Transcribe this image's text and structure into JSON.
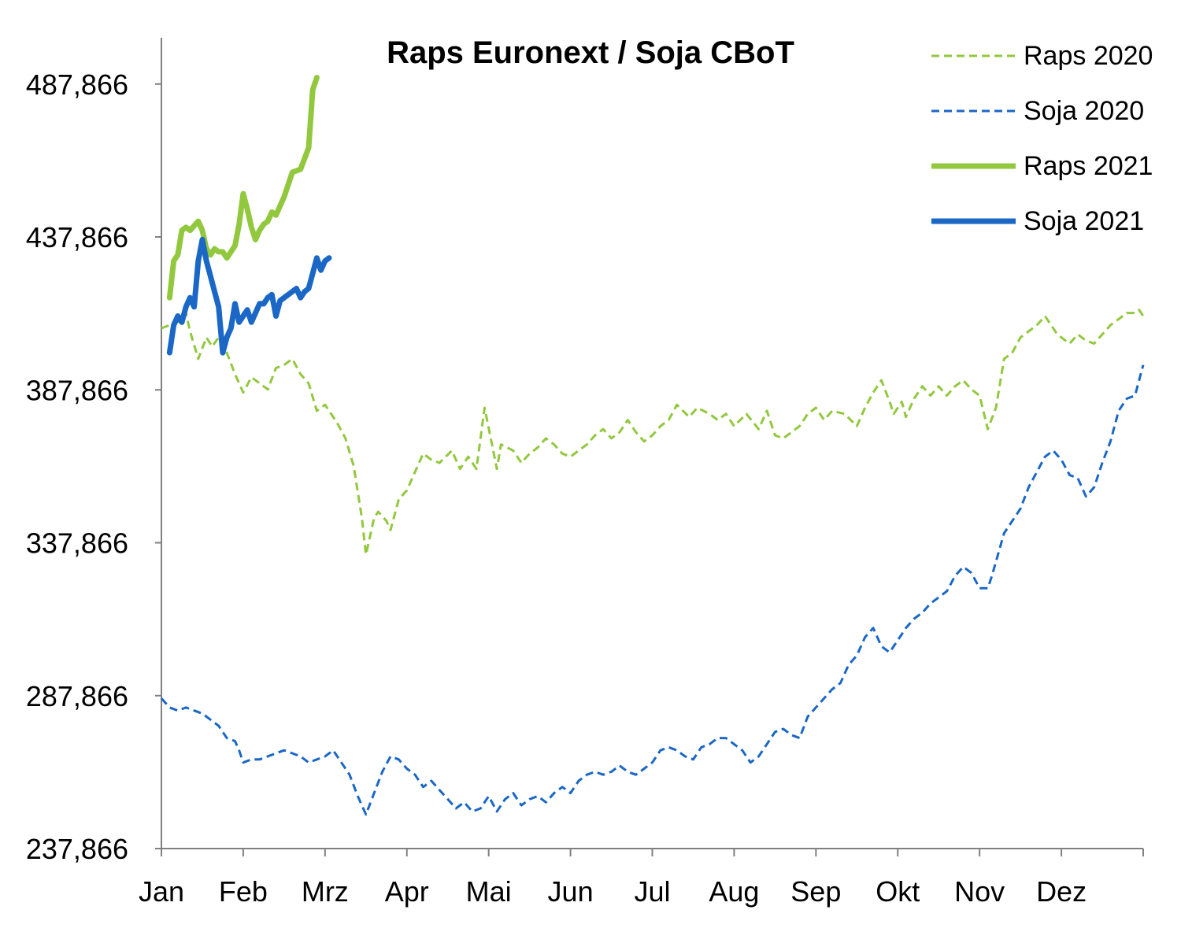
{
  "chart_data": {
    "type": "line",
    "title": "Raps Euronext / Soja CBoT",
    "xlabel": "",
    "ylabel": "",
    "x_categories": [
      "Jan",
      "Feb",
      "Mrz",
      "Apr",
      "Mai",
      "Jun",
      "Jul",
      "Aug",
      "Sep",
      "Okt",
      "Nov",
      "Dez"
    ],
    "x_domain": [
      0,
      12
    ],
    "y_ticks": [
      "237,866",
      "287,866",
      "337,866",
      "387,866",
      "437,866",
      "487,866"
    ],
    "ylim": [
      237.866,
      500
    ],
    "grid": false,
    "legend_position": "top-right",
    "series": [
      {
        "name": "Raps 2020",
        "color": "#92C83E",
        "dash": true,
        "points": [
          [
            0,
            408
          ],
          [
            0.2,
            410
          ],
          [
            0.3,
            413
          ],
          [
            0.35,
            407
          ],
          [
            0.45,
            398
          ],
          [
            0.55,
            405
          ],
          [
            0.62,
            402
          ],
          [
            0.7,
            405
          ],
          [
            0.8,
            400
          ],
          [
            0.9,
            393
          ],
          [
            1.0,
            387
          ],
          [
            1.1,
            392
          ],
          [
            1.25,
            389
          ],
          [
            1.3,
            388
          ],
          [
            1.4,
            395
          ],
          [
            1.5,
            396
          ],
          [
            1.6,
            398
          ],
          [
            1.7,
            393
          ],
          [
            1.8,
            390
          ],
          [
            1.9,
            381
          ],
          [
            2.0,
            383
          ],
          [
            2.15,
            377
          ],
          [
            2.25,
            372
          ],
          [
            2.35,
            363
          ],
          [
            2.45,
            346
          ],
          [
            2.5,
            334
          ],
          [
            2.6,
            346
          ],
          [
            2.65,
            348
          ],
          [
            2.75,
            345
          ],
          [
            2.8,
            342
          ],
          [
            2.9,
            352
          ],
          [
            3.0,
            355
          ],
          [
            3.1,
            361
          ],
          [
            3.2,
            367
          ],
          [
            3.3,
            365
          ],
          [
            3.4,
            364
          ],
          [
            3.55,
            368
          ],
          [
            3.65,
            362
          ],
          [
            3.75,
            366
          ],
          [
            3.85,
            362
          ],
          [
            3.95,
            382
          ],
          [
            4.1,
            362
          ],
          [
            4.15,
            370
          ],
          [
            4.3,
            368
          ],
          [
            4.4,
            364
          ],
          [
            4.5,
            367
          ],
          [
            4.6,
            369
          ],
          [
            4.7,
            372
          ],
          [
            4.8,
            370
          ],
          [
            4.9,
            367
          ],
          [
            5.0,
            366
          ],
          [
            5.1,
            368
          ],
          [
            5.2,
            370
          ],
          [
            5.3,
            373
          ],
          [
            5.4,
            375
          ],
          [
            5.5,
            372
          ],
          [
            5.6,
            374
          ],
          [
            5.7,
            378
          ],
          [
            5.8,
            374
          ],
          [
            5.9,
            371
          ],
          [
            6.0,
            373
          ],
          [
            6.1,
            376
          ],
          [
            6.2,
            378
          ],
          [
            6.3,
            383
          ],
          [
            6.45,
            379
          ],
          [
            6.55,
            382
          ],
          [
            6.7,
            380
          ],
          [
            6.8,
            378
          ],
          [
            6.9,
            380
          ],
          [
            7.0,
            376
          ],
          [
            7.15,
            380
          ],
          [
            7.3,
            375
          ],
          [
            7.4,
            381
          ],
          [
            7.5,
            373
          ],
          [
            7.6,
            372
          ],
          [
            7.7,
            374
          ],
          [
            7.8,
            376
          ],
          [
            7.9,
            380
          ],
          [
            8.0,
            382
          ],
          [
            8.1,
            378
          ],
          [
            8.2,
            381
          ],
          [
            8.35,
            380
          ],
          [
            8.5,
            376
          ],
          [
            8.6,
            382
          ],
          [
            8.7,
            387
          ],
          [
            8.8,
            391
          ],
          [
            8.9,
            384
          ],
          [
            8.95,
            380
          ],
          [
            9.05,
            384
          ],
          [
            9.1,
            379
          ],
          [
            9.2,
            385
          ],
          [
            9.3,
            389
          ],
          [
            9.4,
            386
          ],
          [
            9.5,
            389
          ],
          [
            9.6,
            386
          ],
          [
            9.7,
            389
          ],
          [
            9.8,
            391
          ],
          [
            9.9,
            388
          ],
          [
            10.0,
            386
          ],
          [
            10.1,
            375
          ],
          [
            10.2,
            382
          ],
          [
            10.3,
            398
          ],
          [
            10.4,
            400
          ],
          [
            10.5,
            405
          ],
          [
            10.6,
            407
          ],
          [
            10.7,
            409
          ],
          [
            10.8,
            412
          ],
          [
            10.85,
            410
          ],
          [
            10.95,
            406
          ],
          [
            11.0,
            405
          ],
          [
            11.1,
            403
          ],
          [
            11.2,
            406
          ],
          [
            11.3,
            404
          ],
          [
            11.4,
            403
          ],
          [
            11.5,
            406
          ],
          [
            11.6,
            409
          ],
          [
            11.7,
            411
          ],
          [
            11.8,
            413
          ],
          [
            11.9,
            413
          ],
          [
            11.95,
            414
          ],
          [
            12.0,
            412
          ]
        ]
      },
      {
        "name": "Soja 2020",
        "color": "#1A67C6",
        "dash": true,
        "points": [
          [
            0,
            287
          ],
          [
            0.1,
            284
          ],
          [
            0.2,
            283
          ],
          [
            0.3,
            284
          ],
          [
            0.4,
            283
          ],
          [
            0.5,
            282
          ],
          [
            0.6,
            280
          ],
          [
            0.7,
            278
          ],
          [
            0.8,
            274
          ],
          [
            0.9,
            273
          ],
          [
            0.95,
            270
          ],
          [
            1.0,
            266
          ],
          [
            1.1,
            267
          ],
          [
            1.2,
            267
          ],
          [
            1.3,
            268
          ],
          [
            1.4,
            269
          ],
          [
            1.5,
            270
          ],
          [
            1.6,
            269
          ],
          [
            1.7,
            268
          ],
          [
            1.8,
            266
          ],
          [
            1.9,
            267
          ],
          [
            2.0,
            268
          ],
          [
            2.1,
            270
          ],
          [
            2.2,
            266
          ],
          [
            2.3,
            262
          ],
          [
            2.4,
            255
          ],
          [
            2.5,
            249
          ],
          [
            2.6,
            256
          ],
          [
            2.7,
            263
          ],
          [
            2.8,
            268
          ],
          [
            2.9,
            267
          ],
          [
            3.0,
            264
          ],
          [
            3.1,
            262
          ],
          [
            3.2,
            258
          ],
          [
            3.3,
            260
          ],
          [
            3.4,
            257
          ],
          [
            3.5,
            254
          ],
          [
            3.6,
            251
          ],
          [
            3.7,
            253
          ],
          [
            3.8,
            250
          ],
          [
            3.9,
            251
          ],
          [
            4.0,
            255
          ],
          [
            4.1,
            250
          ],
          [
            4.2,
            254
          ],
          [
            4.3,
            256
          ],
          [
            4.4,
            252
          ],
          [
            4.5,
            254
          ],
          [
            4.6,
            255
          ],
          [
            4.7,
            253
          ],
          [
            4.8,
            256
          ],
          [
            4.9,
            258
          ],
          [
            5.0,
            256
          ],
          [
            5.1,
            260
          ],
          [
            5.2,
            262
          ],
          [
            5.3,
            263
          ],
          [
            5.4,
            262
          ],
          [
            5.5,
            263
          ],
          [
            5.6,
            265
          ],
          [
            5.7,
            263
          ],
          [
            5.8,
            262
          ],
          [
            5.9,
            264
          ],
          [
            6.0,
            266
          ],
          [
            6.1,
            270
          ],
          [
            6.2,
            271
          ],
          [
            6.3,
            270
          ],
          [
            6.4,
            268
          ],
          [
            6.5,
            267
          ],
          [
            6.6,
            271
          ],
          [
            6.7,
            272
          ],
          [
            6.8,
            274
          ],
          [
            6.9,
            274
          ],
          [
            7.0,
            272
          ],
          [
            7.1,
            270
          ],
          [
            7.2,
            266
          ],
          [
            7.3,
            268
          ],
          [
            7.4,
            272
          ],
          [
            7.5,
            276
          ],
          [
            7.6,
            277
          ],
          [
            7.7,
            275
          ],
          [
            7.8,
            274
          ],
          [
            7.9,
            281
          ],
          [
            8.0,
            284
          ],
          [
            8.1,
            287
          ],
          [
            8.2,
            290
          ],
          [
            8.3,
            292
          ],
          [
            8.4,
            298
          ],
          [
            8.5,
            301
          ],
          [
            8.6,
            307
          ],
          [
            8.7,
            310
          ],
          [
            8.8,
            304
          ],
          [
            8.9,
            302
          ],
          [
            9.0,
            306
          ],
          [
            9.1,
            310
          ],
          [
            9.2,
            313
          ],
          [
            9.3,
            315
          ],
          [
            9.4,
            318
          ],
          [
            9.5,
            320
          ],
          [
            9.6,
            322
          ],
          [
            9.7,
            327
          ],
          [
            9.8,
            330
          ],
          [
            9.9,
            328
          ],
          [
            10.0,
            323
          ],
          [
            10.1,
            323
          ],
          [
            10.15,
            327
          ],
          [
            10.3,
            341
          ],
          [
            10.4,
            345
          ],
          [
            10.5,
            349
          ],
          [
            10.6,
            356
          ],
          [
            10.7,
            361
          ],
          [
            10.8,
            366
          ],
          [
            10.9,
            368
          ],
          [
            11.0,
            365
          ],
          [
            11.1,
            360
          ],
          [
            11.2,
            359
          ],
          [
            11.3,
            353
          ],
          [
            11.4,
            356
          ],
          [
            11.5,
            364
          ],
          [
            11.6,
            371
          ],
          [
            11.7,
            381
          ],
          [
            11.8,
            385
          ],
          [
            11.9,
            386
          ],
          [
            12.0,
            396
          ]
        ]
      },
      {
        "name": "Raps 2021",
        "color": "#92C83E",
        "dash": false,
        "points": [
          [
            0.1,
            418
          ],
          [
            0.15,
            430
          ],
          [
            0.2,
            432
          ],
          [
            0.25,
            440
          ],
          [
            0.3,
            441
          ],
          [
            0.35,
            440
          ],
          [
            0.45,
            443
          ],
          [
            0.5,
            440
          ],
          [
            0.55,
            434
          ],
          [
            0.6,
            432
          ],
          [
            0.65,
            434
          ],
          [
            0.7,
            433
          ],
          [
            0.75,
            433
          ],
          [
            0.8,
            431
          ],
          [
            0.85,
            433
          ],
          [
            0.9,
            435
          ],
          [
            0.95,
            442
          ],
          [
            1.0,
            452
          ],
          [
            1.05,
            447
          ],
          [
            1.1,
            441
          ],
          [
            1.15,
            437
          ],
          [
            1.2,
            440
          ],
          [
            1.25,
            442
          ],
          [
            1.3,
            443
          ],
          [
            1.35,
            446
          ],
          [
            1.4,
            445
          ],
          [
            1.5,
            451
          ],
          [
            1.55,
            455
          ],
          [
            1.6,
            459
          ],
          [
            1.7,
            460
          ],
          [
            1.8,
            467
          ],
          [
            1.85,
            486
          ],
          [
            1.9,
            490
          ]
        ]
      },
      {
        "name": "Soja 2021",
        "color": "#1A67C6",
        "dash": false,
        "points": [
          [
            0.1,
            400
          ],
          [
            0.15,
            409
          ],
          [
            0.2,
            412
          ],
          [
            0.25,
            410
          ],
          [
            0.3,
            415
          ],
          [
            0.35,
            418
          ],
          [
            0.4,
            415
          ],
          [
            0.45,
            430
          ],
          [
            0.5,
            437
          ],
          [
            0.55,
            430
          ],
          [
            0.6,
            425
          ],
          [
            0.65,
            420
          ],
          [
            0.7,
            415
          ],
          [
            0.75,
            400
          ],
          [
            0.8,
            405
          ],
          [
            0.85,
            408
          ],
          [
            0.9,
            416
          ],
          [
            0.95,
            410
          ],
          [
            1.0,
            412
          ],
          [
            1.05,
            414
          ],
          [
            1.1,
            410
          ],
          [
            1.15,
            413
          ],
          [
            1.2,
            416
          ],
          [
            1.25,
            416
          ],
          [
            1.3,
            418
          ],
          [
            1.35,
            419
          ],
          [
            1.4,
            412
          ],
          [
            1.45,
            417
          ],
          [
            1.5,
            418
          ],
          [
            1.55,
            419
          ],
          [
            1.6,
            420
          ],
          [
            1.65,
            421
          ],
          [
            1.7,
            418
          ],
          [
            1.75,
            420
          ],
          [
            1.8,
            421
          ],
          [
            1.85,
            426
          ],
          [
            1.9,
            431
          ],
          [
            1.95,
            427
          ],
          [
            2.0,
            430
          ],
          [
            2.05,
            431
          ]
        ]
      }
    ]
  }
}
